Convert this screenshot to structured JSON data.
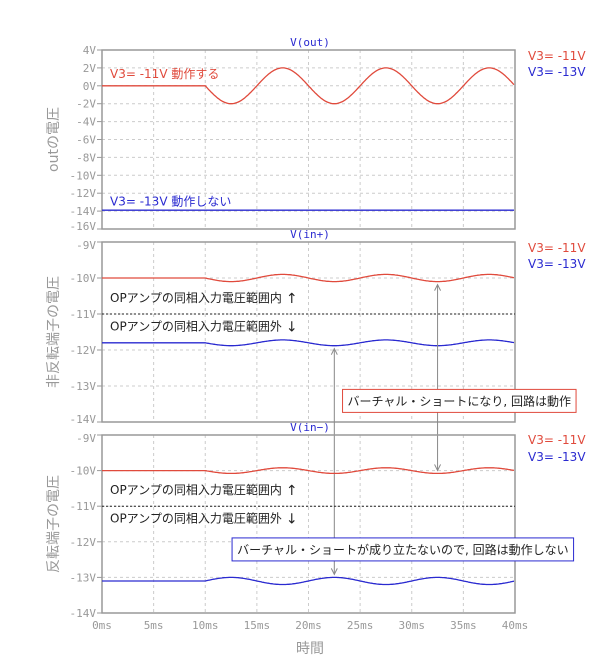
{
  "chart_data": [
    {
      "type": "line",
      "title": "V(out)",
      "ylabel": "outの電圧",
      "xlabel": "",
      "ylim": [
        -16,
        4
      ],
      "yticks": [
        4,
        2,
        0,
        -2,
        -4,
        -6,
        -8,
        -10,
        -12,
        -14,
        -16
      ],
      "ytick_labels": [
        "4V",
        "2V",
        "0V",
        "-2V",
        "-4V",
        "-6V",
        "-8V",
        "-10V",
        "-12V",
        "-14V",
        "-16V"
      ],
      "xlim": [
        0,
        40
      ],
      "grid": true,
      "legend": [
        "V3= -11V",
        "V3= -13V"
      ],
      "legend_placement": "right",
      "series": [
        {
          "name": "V3= -11V",
          "color": "#e04a3c",
          "baseline": 0,
          "amplitude": -2,
          "start_ms": 10,
          "period_ms": 10
        },
        {
          "name": "V3= -13V",
          "color": "#2a2ad0",
          "baseline": -13.9,
          "amplitude": 0,
          "start_ms": 10,
          "period_ms": 10
        }
      ],
      "annotations": [
        {
          "text": "V3= -11V  動作する",
          "color": "#e04a3c",
          "x": 0.5,
          "y": 1.3
        },
        {
          "text": "V3= -13V  動作しない",
          "color": "#2a2ad0",
          "x": 0.5,
          "y": -12.9
        }
      ]
    },
    {
      "type": "line",
      "title": "V(in+)",
      "ylabel": "非反転端子の電圧",
      "xlabel": "",
      "ylim": [
        -14,
        -9
      ],
      "yticks": [
        -9,
        -10,
        -11,
        -12,
        -13,
        -14
      ],
      "ytick_labels": [
        "-9V",
        "-10V",
        "-11V",
        "-12V",
        "-13V",
        "-14V"
      ],
      "xlim": [
        0,
        40
      ],
      "grid": true,
      "legend": [
        "V3= -11V",
        "V3= -13V"
      ],
      "legend_placement": "right",
      "series": [
        {
          "name": "V3= -11V",
          "color": "#e04a3c",
          "baseline": -10,
          "amplitude": -0.1,
          "start_ms": 10,
          "period_ms": 10
        },
        {
          "name": "V3= -13V",
          "color": "#2a2ad0",
          "baseline": -11.8,
          "amplitude": -0.08,
          "start_ms": 10,
          "period_ms": 10
        }
      ],
      "annotations": [
        {
          "text": "OPアンプの同相入力電圧範囲内",
          "arrow": "↑",
          "color": "#222222",
          "x": 0.5,
          "y": -10.55
        },
        {
          "text": "OPアンプの同相入力電圧範囲外",
          "arrow": "↓",
          "color": "#222222",
          "x": 0.5,
          "y": -11.35
        },
        {
          "text": "バーチャル・ショートになり, 回路は動作",
          "color": "#222222",
          "border": "#e04a3c",
          "x": 23.2,
          "y": -13.4
        }
      ]
    },
    {
      "type": "line",
      "title": "V(in−)",
      "ylabel": "反転端子の電圧",
      "xlabel": "時間",
      "ylim": [
        -14,
        -9
      ],
      "yticks": [
        -9,
        -10,
        -11,
        -12,
        -13,
        -14
      ],
      "ytick_labels": [
        "-9V",
        "-10V",
        "-11V",
        "-12V",
        "-13V",
        "-14V"
      ],
      "xlim": [
        0,
        40
      ],
      "xticks": [
        0,
        5,
        10,
        15,
        20,
        25,
        30,
        35,
        40
      ],
      "xtick_labels": [
        "0ms",
        "5ms",
        "10ms",
        "15ms",
        "20ms",
        "25ms",
        "30ms",
        "35ms",
        "40ms"
      ],
      "grid": true,
      "legend": [
        "V3= -11V",
        "V3= -13V"
      ],
      "legend_placement": "right",
      "series": [
        {
          "name": "V3= -11V",
          "color": "#e04a3c",
          "baseline": -10,
          "amplitude": -0.08,
          "start_ms": 10,
          "period_ms": 10
        },
        {
          "name": "V3= -13V",
          "color": "#2a2ad0",
          "baseline": -13.1,
          "amplitude": 0.1,
          "start_ms": 10,
          "period_ms": 10
        }
      ],
      "annotations": [
        {
          "text": "OPアンプの同相入力電圧範囲内",
          "arrow": "↑",
          "color": "#222222",
          "x": 0.5,
          "y": -10.55
        },
        {
          "text": "OPアンプの同相入力電圧範囲外",
          "arrow": "↓",
          "color": "#222222",
          "x": 0.5,
          "y": -11.35
        },
        {
          "text": "バーチャル・ショートが成り立たないので, 回路は動作しない",
          "color": "#222222",
          "border": "#2a2ad0",
          "x": 12.5,
          "y": -12.2
        }
      ]
    }
  ],
  "pointer_arrows": [
    {
      "x_ms": 32.5,
      "from": {
        "plot": 1,
        "y": -10.1
      },
      "to": {
        "plot": 2,
        "y": -10.08
      }
    },
    {
      "x_ms": 22.5,
      "from": {
        "plot": 1,
        "y": -11.88
      },
      "to": {
        "plot": 2,
        "y": -13.0
      }
    }
  ],
  "colors": {
    "axis": "#999999",
    "grid": "#cccccc",
    "title": "#2a2ad0",
    "red": "#e04a3c",
    "blue": "#2a2ad0"
  }
}
